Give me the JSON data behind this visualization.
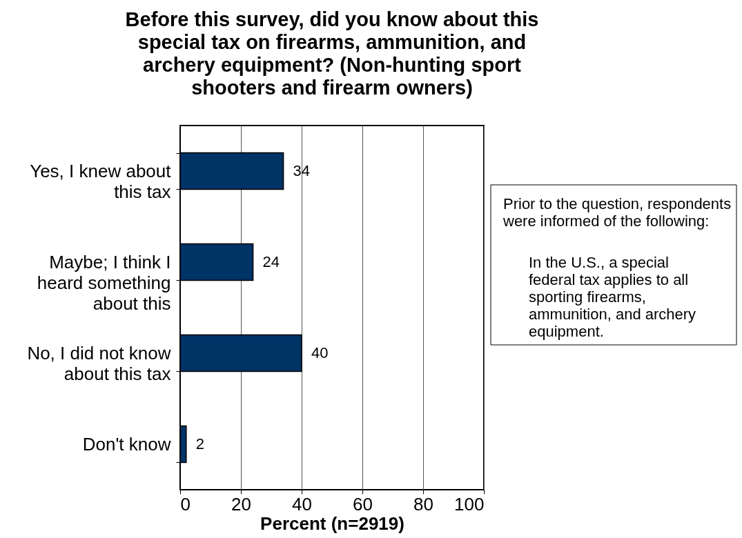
{
  "chart_data": {
    "type": "bar",
    "orientation": "horizontal",
    "title": "Before this survey, did you know about this special tax on firearms, ammunition, and archery equipment? (Non-hunting sport shooters and firearm owners)",
    "xlabel": "Percent (n=2919)",
    "categories": [
      "Yes, I knew about this tax",
      "Maybe; I think I heard something about this",
      "No, I did not know about this tax",
      "Don't know"
    ],
    "values": [
      34,
      24,
      40,
      2
    ],
    "color": "#003366",
    "xlim": [
      0,
      100
    ],
    "xticks": [
      0,
      20,
      40,
      60,
      80,
      100
    ],
    "grid": "x",
    "data_labels": true,
    "annotations": [
      "Prior to the question, respondents were informed of the following:",
      "In the U.S., a special federal tax applies to all sporting firearms, ammunition, and archery equipment."
    ]
  }
}
